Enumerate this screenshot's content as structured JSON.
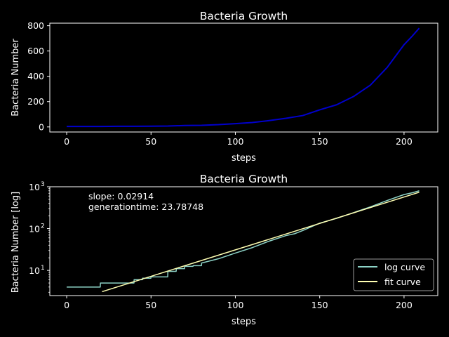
{
  "chart_data": [
    {
      "type": "line",
      "title": "Bacteria Growth",
      "xlabel": "steps",
      "ylabel": "Bacteria Number",
      "xlim": [
        -10,
        220
      ],
      "ylim": [
        -40,
        820
      ],
      "xticks": [
        0,
        50,
        100,
        150,
        200
      ],
      "xtick_labels": [
        "0",
        "50",
        "100",
        "150",
        "200"
      ],
      "yticks": [
        0,
        200,
        400,
        600,
        800
      ],
      "ytick_labels": [
        "0",
        "200",
        "400",
        "600",
        "800"
      ],
      "grid": false,
      "series": [
        {
          "color": "#0000cc",
          "x": [
            0,
            10,
            20,
            30,
            40,
            50,
            60,
            70,
            80,
            90,
            100,
            110,
            120,
            130,
            140,
            150,
            160,
            170,
            180,
            190,
            200,
            205,
            209
          ],
          "y": [
            4,
            4,
            4,
            5,
            5,
            6,
            7,
            11,
            13,
            18,
            26,
            35,
            50,
            68,
            90,
            135,
            175,
            240,
            330,
            470,
            650,
            720,
            780
          ]
        }
      ]
    },
    {
      "type": "line",
      "title": "Bacteria Growth",
      "xlabel": "steps",
      "ylabel": "Bacteria Number [log]",
      "yscale": "log",
      "xlim": [
        -10,
        220
      ],
      "ylim": [
        2.5,
        1000
      ],
      "xticks": [
        0,
        50,
        100,
        150,
        200
      ],
      "xtick_labels": [
        "0",
        "50",
        "100",
        "150",
        "200"
      ],
      "yticks": [
        10,
        100,
        1000
      ],
      "ytick_base": "10",
      "ytick_exponents": [
        "1",
        "2",
        "3"
      ],
      "grid": false,
      "legend_position": "lower-right",
      "annotations": [
        "slope: 0.02914",
        "generationtime: 23.78748"
      ],
      "series": [
        {
          "name": "log curve",
          "color": "#8dd3c7",
          "x": [
            0,
            10,
            19.9,
            20,
            30,
            39.9,
            40,
            44.9,
            45,
            49.9,
            50,
            59.9,
            60,
            64.9,
            65,
            69.9,
            70,
            74.9,
            75,
            79.9,
            80,
            90,
            100,
            110,
            120,
            130,
            135,
            140,
            150,
            160,
            170,
            180,
            190,
            200,
            205,
            209
          ],
          "y": [
            4,
            4,
            4,
            5,
            5,
            5,
            6,
            6,
            6.5,
            6.5,
            7,
            7,
            9.5,
            9.5,
            11,
            11,
            12.5,
            12.5,
            13,
            13,
            15,
            19,
            26,
            35,
            50,
            68,
            75,
            90,
            135,
            175,
            240,
            330,
            470,
            650,
            720,
            800
          ]
        },
        {
          "name": "fit curve",
          "color": "#ffffb3",
          "x": [
            21,
            209
          ],
          "y": [
            3.1,
            740
          ]
        }
      ]
    }
  ]
}
